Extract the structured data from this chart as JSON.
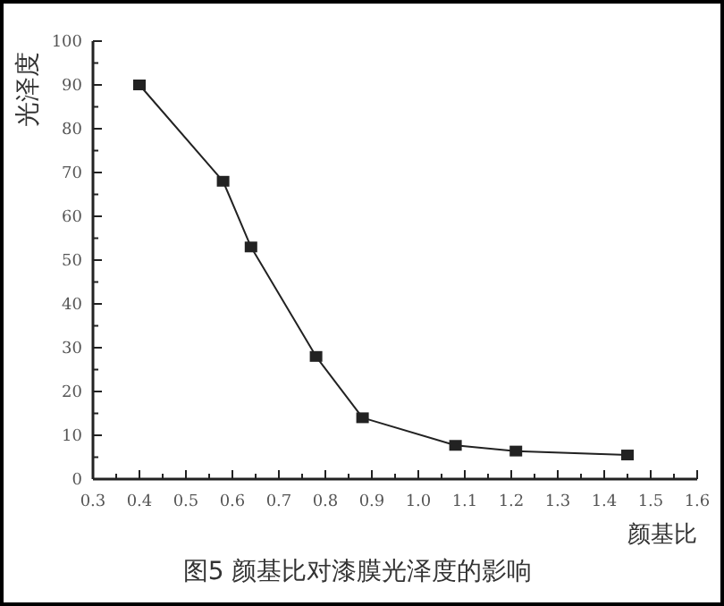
{
  "chart_data": {
    "type": "line",
    "title": "图5  颜基比对漆膜光泽度的影响",
    "xlabel": "颜基比",
    "ylabel": "光泽度",
    "x": [
      0.4,
      0.58,
      0.64,
      0.78,
      0.88,
      1.08,
      1.21,
      1.45
    ],
    "series": [
      {
        "color": "#222222",
        "values": [
          90,
          68,
          53,
          28,
          14,
          7.7,
          6.4,
          5.5
        ]
      }
    ],
    "xlim": [
      0.3,
      1.6
    ],
    "ylim": [
      0,
      100
    ],
    "xticks": [
      {
        "value": 0.3,
        "label": "0.3"
      },
      {
        "value": 0.35,
        "label": null
      },
      {
        "value": 0.4,
        "label": "0.4"
      },
      {
        "value": 0.45,
        "label": null
      },
      {
        "value": 0.5,
        "label": "0.5"
      },
      {
        "value": 0.55,
        "label": null
      },
      {
        "value": 0.6,
        "label": "0.6"
      },
      {
        "value": 0.65,
        "label": null
      },
      {
        "value": 0.7,
        "label": "0.7"
      },
      {
        "value": 0.75,
        "label": null
      },
      {
        "value": 0.8,
        "label": "0.8"
      },
      {
        "value": 0.85,
        "label": null
      },
      {
        "value": 0.9,
        "label": "0.9"
      },
      {
        "value": 0.95,
        "label": null
      },
      {
        "value": 1.0,
        "label": "1.0"
      },
      {
        "value": 1.05,
        "label": null
      },
      {
        "value": 1.1,
        "label": "1.1"
      },
      {
        "value": 1.15,
        "label": null
      },
      {
        "value": 1.2,
        "label": "1.2"
      },
      {
        "value": 1.25,
        "label": null
      },
      {
        "value": 1.3,
        "label": "1.3"
      },
      {
        "value": 1.35,
        "label": null
      },
      {
        "value": 1.4,
        "label": "1.4"
      },
      {
        "value": 1.45,
        "label": null
      },
      {
        "value": 1.5,
        "label": "1.5"
      },
      {
        "value": 1.55,
        "label": null
      },
      {
        "value": 1.6,
        "label": "1.6"
      }
    ],
    "yticks": [
      0,
      {
        "value": 5,
        "label": null
      },
      10,
      {
        "value": 15,
        "label": null
      },
      20,
      {
        "value": 25,
        "label": null
      },
      30,
      {
        "value": 35,
        "label": null
      },
      40,
      {
        "value": 45,
        "label": null
      },
      50,
      {
        "value": 55,
        "label": null
      },
      60,
      {
        "value": 65,
        "label": null
      },
      70,
      {
        "value": 75,
        "label": null
      },
      80,
      {
        "value": 85,
        "label": null
      },
      90,
      {
        "value": 95,
        "label": null
      },
      100
    ],
    "marker": "square",
    "line_style": "solid",
    "grid": false
  }
}
